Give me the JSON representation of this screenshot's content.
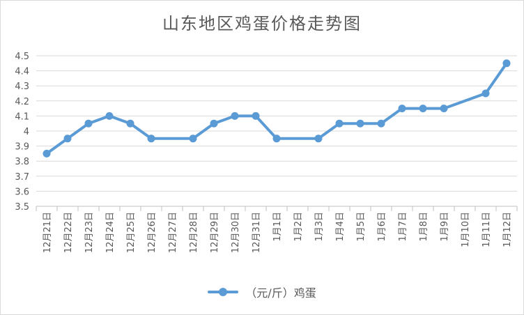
{
  "chart_data": {
    "type": "line",
    "title": "山东地区鸡蛋价格走势图",
    "categories": [
      "12月21日",
      "12月22日",
      "12月23日",
      "12月24日",
      "12月25日",
      "12月26日",
      "12月27日",
      "12月28日",
      "12月29日",
      "12月30日",
      "12月31日",
      "1月1日",
      "1月2日",
      "1月3日",
      "1月4日",
      "1月5日",
      "1月6日",
      "1月7日",
      "1月8日",
      "1月9日",
      "1月10日",
      "1月11日",
      "1月12日"
    ],
    "series": [
      {
        "name": "（元/斤）鸡蛋",
        "values": [
          3.85,
          3.95,
          4.05,
          4.1,
          4.05,
          3.95,
          null,
          3.95,
          4.05,
          4.1,
          4.1,
          3.95,
          null,
          3.95,
          4.05,
          4.05,
          4.05,
          4.15,
          4.15,
          4.15,
          null,
          4.25,
          4.45
        ],
        "color": "#5b9bd5"
      }
    ],
    "ylim": [
      3.5,
      4.5
    ],
    "yticks": [
      "3.5",
      "3.6",
      "3.7",
      "3.8",
      "3.9",
      "4",
      "4.1",
      "4.2",
      "4.3",
      "4.4",
      "4.5"
    ],
    "grid": true,
    "legend": "bottom"
  }
}
